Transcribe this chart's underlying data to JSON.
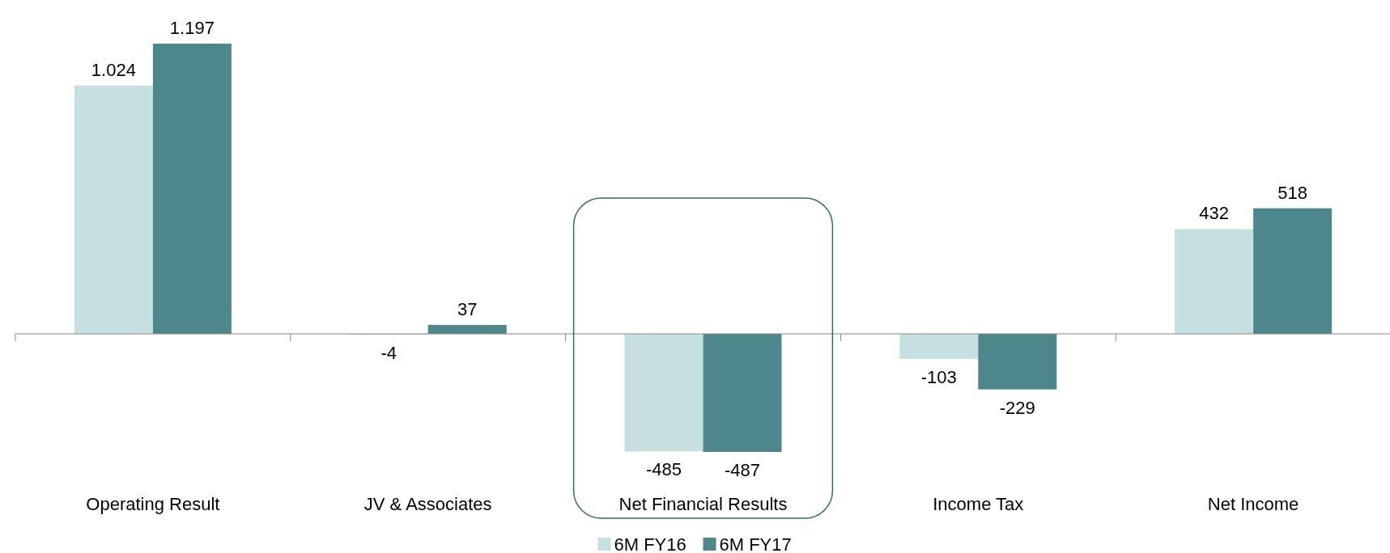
{
  "chart_data": {
    "type": "bar",
    "categories": [
      "Operating Result",
      "JV & Associates",
      "Net Financial Results",
      "Income Tax",
      "Net Income"
    ],
    "series": [
      {
        "name": "6M FY16",
        "color": "#c6dfe0",
        "values": [
          1024,
          -4,
          -485,
          -103,
          432
        ],
        "value_labels": [
          "1.024",
          "-4",
          "-485",
          "-103",
          "432"
        ]
      },
      {
        "name": "6M FY17",
        "color": "#4d878c",
        "values": [
          1197,
          37,
          -487,
          -229,
          518
        ],
        "value_labels": [
          "1.197",
          "37",
          "-487",
          "-229",
          "518"
        ]
      }
    ],
    "legend": "bottom"
  }
}
